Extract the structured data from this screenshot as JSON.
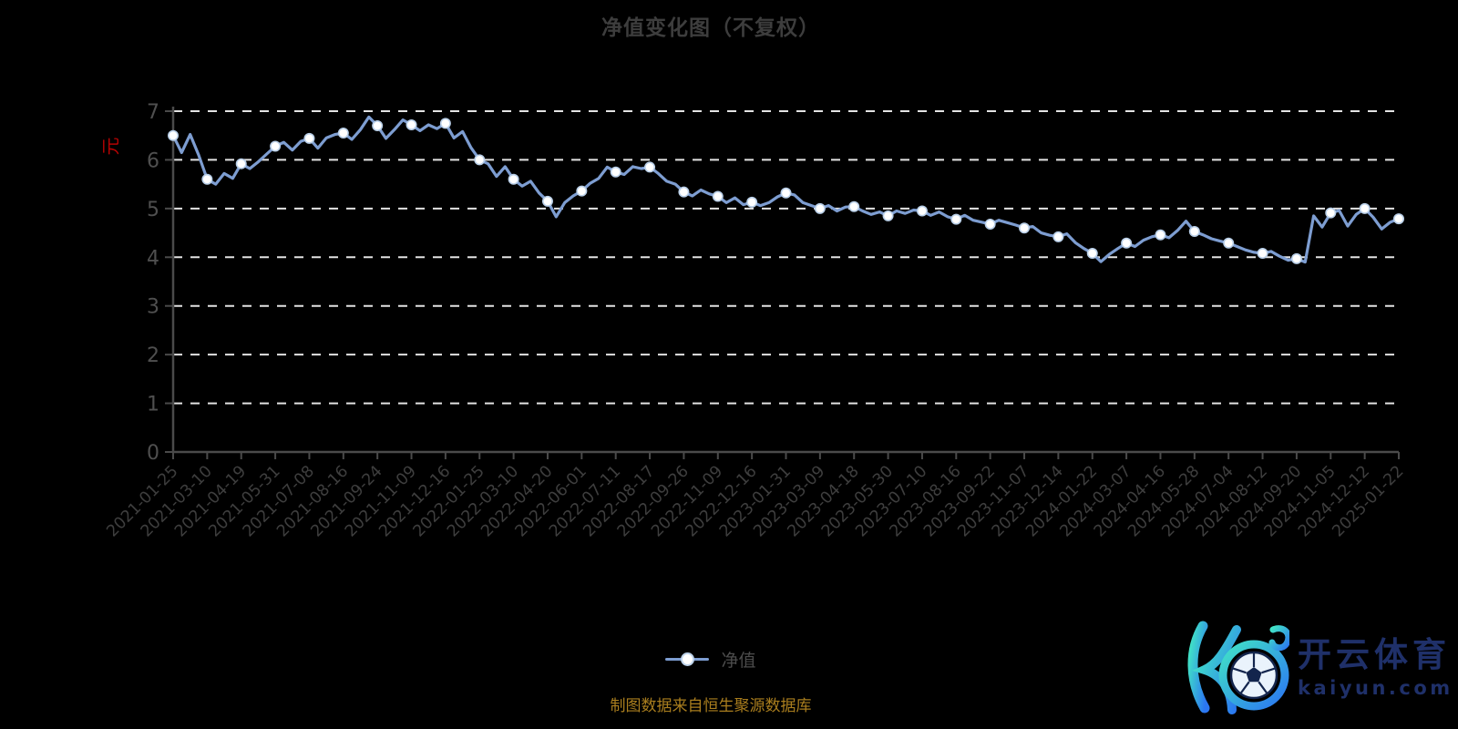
{
  "title": "净值变化图（不复权）",
  "y_axis_name": "元",
  "legend": {
    "label": "净值"
  },
  "source_note": "制图数据来自恒生聚源数据库",
  "logo": {
    "brand": "开云体育",
    "domain": "kaiyun.com"
  },
  "colors": {
    "background": "#000000",
    "title_text": "#3d3d3d",
    "axis": "#4a4a4a",
    "grid": "#e3e3e3",
    "y_tick_label": "#4f4f4f",
    "x_tick_label": "#3e3e3e",
    "line": "#7d9dd1",
    "marker_fill": "#ffffff",
    "marker_ring": "#b9cfe8",
    "unit_label_red": "#b30303",
    "source_gold": "#aa7e1e",
    "logo_navy": "#1f3069",
    "logo_gradient_start": "#41e3c6",
    "logo_gradient_end": "#2b76f2"
  },
  "chart_data": {
    "type": "line",
    "title": "净值变化图（不复权）",
    "xlabel": "",
    "ylabel": "元",
    "ylim": [
      0,
      7
    ],
    "y_ticks": [
      0,
      1,
      2,
      3,
      4,
      5,
      6,
      7
    ],
    "grid": "horizontal dashed white lines at integers 1-7",
    "legend_position": "bottom center",
    "series_name": "净值",
    "categories": [
      "2021-01-25",
      "2021-03-10",
      "2021-04-19",
      "2021-05-31",
      "2021-07-08",
      "2021-08-16",
      "2021-09-24",
      "2021-11-09",
      "2021-12-16",
      "2022-01-25",
      "2022-03-10",
      "2022-04-20",
      "2022-06-01",
      "2022-07-11",
      "2022-08-17",
      "2022-09-26",
      "2022-11-09",
      "2022-12-16",
      "2023-01-31",
      "2023-03-09",
      "2023-04-18",
      "2023-05-30",
      "2023-07-10",
      "2023-08-16",
      "2023-09-22",
      "2023-11-07",
      "2023-12-14",
      "2024-01-22",
      "2024-03-07",
      "2024-04-16",
      "2024-05-28",
      "2024-07-04",
      "2024-08-12",
      "2024-09-20",
      "2024-11-05",
      "2024-12-12",
      "2025-01-22"
    ],
    "values": [
      6.5,
      5.6,
      5.92,
      6.28,
      6.44,
      6.55,
      6.7,
      6.72,
      6.75,
      6.0,
      5.6,
      5.15,
      5.36,
      5.75,
      5.85,
      5.34,
      5.25,
      5.13,
      5.32,
      5.0,
      5.04,
      4.85,
      4.95,
      4.78,
      4.68,
      4.6,
      4.42,
      4.08,
      4.29,
      4.46,
      4.53,
      4.29,
      4.08,
      3.97,
      4.91,
      5.0,
      4.79
    ],
    "dense_points_per_interval": 4,
    "dense_values": [
      6.5,
      6.15,
      6.52,
      6.1,
      5.6,
      5.5,
      5.72,
      5.62,
      5.92,
      5.82,
      5.96,
      6.12,
      6.28,
      6.36,
      6.2,
      6.38,
      6.44,
      6.24,
      6.45,
      6.52,
      6.55,
      6.42,
      6.62,
      6.88,
      6.7,
      6.44,
      6.62,
      6.82,
      6.72,
      6.6,
      6.72,
      6.64,
      6.75,
      6.45,
      6.58,
      6.25,
      6.0,
      5.92,
      5.66,
      5.86,
      5.6,
      5.46,
      5.56,
      5.32,
      5.15,
      4.83,
      5.12,
      5.26,
      5.36,
      5.52,
      5.62,
      5.85,
      5.75,
      5.7,
      5.86,
      5.82,
      5.85,
      5.72,
      5.56,
      5.5,
      5.34,
      5.26,
      5.38,
      5.3,
      5.25,
      5.12,
      5.22,
      5.08,
      5.13,
      5.06,
      5.12,
      5.24,
      5.32,
      5.28,
      5.12,
      5.06,
      5.0,
      5.06,
      4.95,
      5.03,
      5.04,
      4.95,
      4.88,
      4.93,
      4.85,
      4.95,
      4.9,
      4.97,
      4.95,
      4.86,
      4.93,
      4.83,
      4.78,
      4.86,
      4.76,
      4.72,
      4.68,
      4.76,
      4.71,
      4.66,
      4.6,
      4.63,
      4.5,
      4.45,
      4.42,
      4.48,
      4.3,
      4.18,
      4.08,
      3.91,
      4.06,
      4.18,
      4.29,
      4.22,
      4.35,
      4.42,
      4.46,
      4.4,
      4.55,
      4.74,
      4.53,
      4.46,
      4.38,
      4.33,
      4.29,
      4.22,
      4.15,
      4.1,
      4.08,
      4.12,
      4.02,
      3.94,
      3.97,
      3.9,
      4.85,
      4.62,
      4.91,
      4.96,
      4.64,
      4.88,
      5.0,
      4.82,
      4.58,
      4.72,
      4.79
    ]
  }
}
